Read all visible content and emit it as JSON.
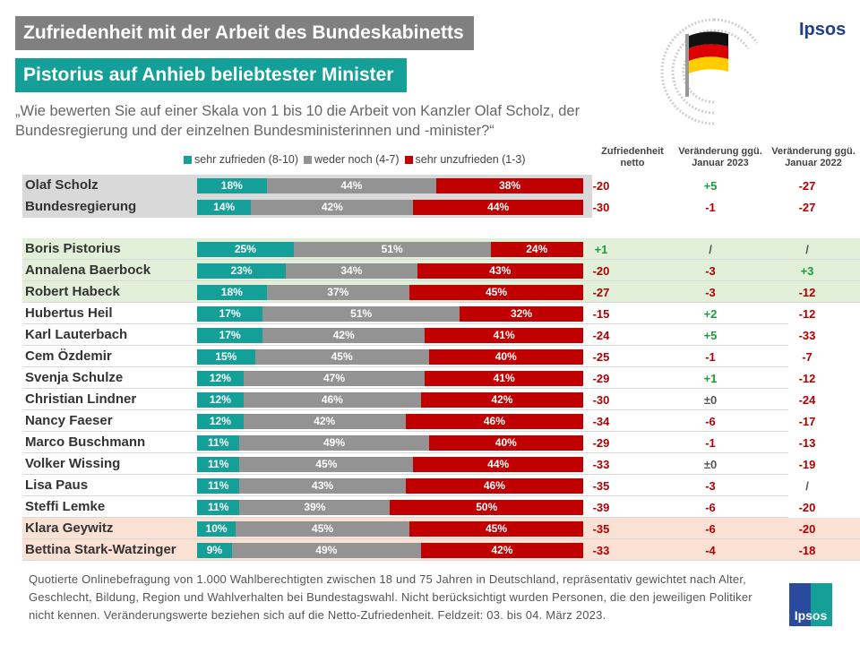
{
  "header": {
    "title": "Zufriedenheit mit der Arbeit des Bundeskabinetts",
    "subtitle": "Pistorius auf Anhieb beliebtester Minister",
    "question": "„Wie bewerten Sie auf einer Skala von 1 bis 10 die Arbeit von Kanzler Olaf Scholz, der Bundesregierung und der einzelnen Bundesministerinnen und -minister?“",
    "brand": "Ipsos",
    "logo_text": "Ipsos"
  },
  "columns": {
    "netto": "Zufriedenheit netto",
    "jan2023": "Veränderung ggü. Januar 2023",
    "jan2022": "Veränderung ggü. Januar 2022"
  },
  "colors": {
    "satisfied": "#14a098",
    "neutral": "#939393",
    "dissatisfied": "#c00000",
    "positive": "#1a9e3a",
    "negative": "#b00000",
    "neutral_text": "#555555",
    "gray_band": "#d9d9d9",
    "green_band": "#e2efd9",
    "red_band": "#fbe0d4"
  },
  "chart_data": {
    "type": "bar",
    "stacked": true,
    "orientation": "horizontal",
    "legend": [
      "sehr zufrieden (8-10)",
      "weder noch (4-7)",
      "sehr unzufrieden (1-3)"
    ],
    "legend_position": "top",
    "rows": [
      {
        "name": "Olaf Scholz",
        "values": [
          18,
          44,
          38
        ],
        "netto": "-20",
        "jan2023": "+5",
        "jan2022": "-27",
        "group": "gray"
      },
      {
        "name": "Bundesregierung",
        "values": [
          14,
          42,
          44
        ],
        "netto": "-30",
        "jan2023": "-1",
        "jan2022": "-27",
        "group": "gray"
      },
      {
        "name": "Boris Pistorius",
        "values": [
          25,
          51,
          24
        ],
        "netto": "+1",
        "jan2023": "/",
        "jan2022": "/",
        "group": "green"
      },
      {
        "name": "Annalena Baerbock",
        "values": [
          23,
          34,
          43
        ],
        "netto": "-20",
        "jan2023": "-3",
        "jan2022": "+3",
        "group": "green"
      },
      {
        "name": "Robert Habeck",
        "values": [
          18,
          37,
          45
        ],
        "netto": "-27",
        "jan2023": "-3",
        "jan2022": "-12",
        "group": "green"
      },
      {
        "name": "Hubertus Heil",
        "values": [
          17,
          51,
          32
        ],
        "netto": "-15",
        "jan2023": "+2",
        "jan2022": "-12",
        "group": "none"
      },
      {
        "name": "Karl Lauterbach",
        "values": [
          17,
          42,
          41
        ],
        "netto": "-24",
        "jan2023": "+5",
        "jan2022": "-33",
        "group": "none"
      },
      {
        "name": "Cem Özdemir",
        "values": [
          15,
          45,
          40
        ],
        "netto": "-25",
        "jan2023": "-1",
        "jan2022": "-7",
        "group": "none"
      },
      {
        "name": "Svenja Schulze",
        "values": [
          12,
          47,
          41
        ],
        "netto": "-29",
        "jan2023": "+1",
        "jan2022": "-12",
        "group": "none"
      },
      {
        "name": "Christian Lindner",
        "values": [
          12,
          46,
          42
        ],
        "netto": "-30",
        "jan2023": "±0",
        "jan2022": "-24",
        "group": "none"
      },
      {
        "name": "Nancy Faeser",
        "values": [
          12,
          42,
          46
        ],
        "netto": "-34",
        "jan2023": "-6",
        "jan2022": "-17",
        "group": "none"
      },
      {
        "name": "Marco Buschmann",
        "values": [
          11,
          49,
          40
        ],
        "netto": "-29",
        "jan2023": "-1",
        "jan2022": "-13",
        "group": "none"
      },
      {
        "name": "Volker Wissing",
        "values": [
          11,
          45,
          44
        ],
        "netto": "-33",
        "jan2023": "±0",
        "jan2022": "-19",
        "group": "none"
      },
      {
        "name": "Lisa Paus",
        "values": [
          11,
          43,
          46
        ],
        "netto": "-35",
        "jan2023": "-3",
        "jan2022": "/",
        "group": "none"
      },
      {
        "name": "Steffi Lemke",
        "values": [
          11,
          39,
          50
        ],
        "netto": "-39",
        "jan2023": "-6",
        "jan2022": "-20",
        "group": "none"
      },
      {
        "name": "Klara Geywitz",
        "values": [
          10,
          45,
          45
        ],
        "netto": "-35",
        "jan2023": "-6",
        "jan2022": "-20",
        "group": "red"
      },
      {
        "name": "Bettina Stark-Watzinger",
        "values": [
          9,
          49,
          42
        ],
        "netto": "-33",
        "jan2023": "-4",
        "jan2022": "-18",
        "group": "red"
      }
    ]
  },
  "footer": "Quotierte Onlinebefragung von 1.000 Wahlberechtigten zwischen 18 und 75 Jahren in Deutschland, repräsentativ gewichtet nach Alter, Geschlecht, Bildung, Region und Wahlverhalten bei Bundestagswahl. Nicht berücksichtigt wurden Personen, die den jeweiligen Politiker nicht kennen. Veränderungswerte beziehen sich auf die Netto-Zufriedenheit. Feldzeit: 03. bis 04. März 2023."
}
